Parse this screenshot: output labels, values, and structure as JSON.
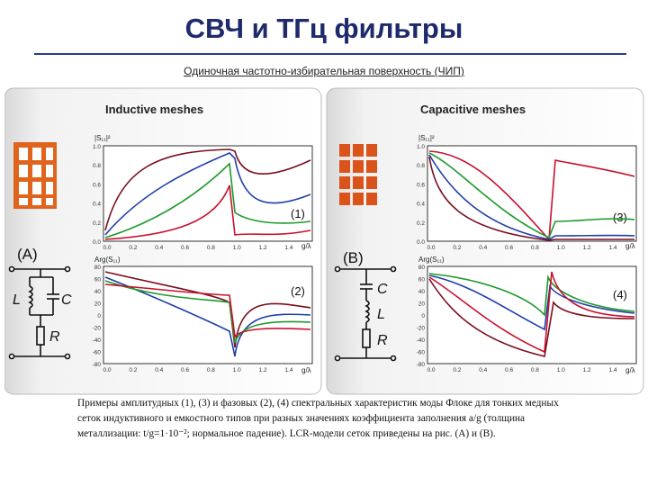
{
  "title": "СВЧ и ТГц фильтры",
  "subtitle": "Одиночная частотно-избирательная поверхность (ЧИП)",
  "figure": {
    "left_title": "Inductive meshes",
    "right_title": "Capacitive meshes",
    "label_A": "(A)",
    "label_B": "(B)",
    "panel_1": "(1)",
    "panel_2": "(2)",
    "panel_3": "(3)",
    "panel_4": "(4)",
    "x_label": "g/λ",
    "mag_ylabel": "|S₁₁|²",
    "arg_ylabel": "Arg(S₁₁)",
    "y_ticks_mag": [
      "1.0",
      "0.8",
      "0.6",
      "0.4",
      "0.2",
      "0.0"
    ],
    "y_ticks_arg": [
      "80",
      "60",
      "40",
      "20",
      "0",
      "-20",
      "-40",
      "-60",
      "-80"
    ],
    "x_ticks": [
      "0.0",
      "0.2",
      "0.4",
      "0.6",
      "0.8",
      "1.0",
      "1.2",
      "1.4"
    ],
    "L": "L",
    "C": "C",
    "R": "R",
    "colors": {
      "red": "#c8102e",
      "dark": "#7a0e1f",
      "green": "#1d9a2a",
      "blue": "#1f3fa8",
      "mesh": "#e0641c"
    }
  },
  "caption": "Примеры амплитудных (1), (3) и фазовых (2), (4) спектральных характеристик моды Флоке для тонких медных сеток индуктивного и емкостного типов при разных значениях коэффициента заполнения a/g (толщина металлизации: t/g=1·10⁻²; нормальное падение). LCR-модели сеток приведены на рис. (A) и (B)."
}
